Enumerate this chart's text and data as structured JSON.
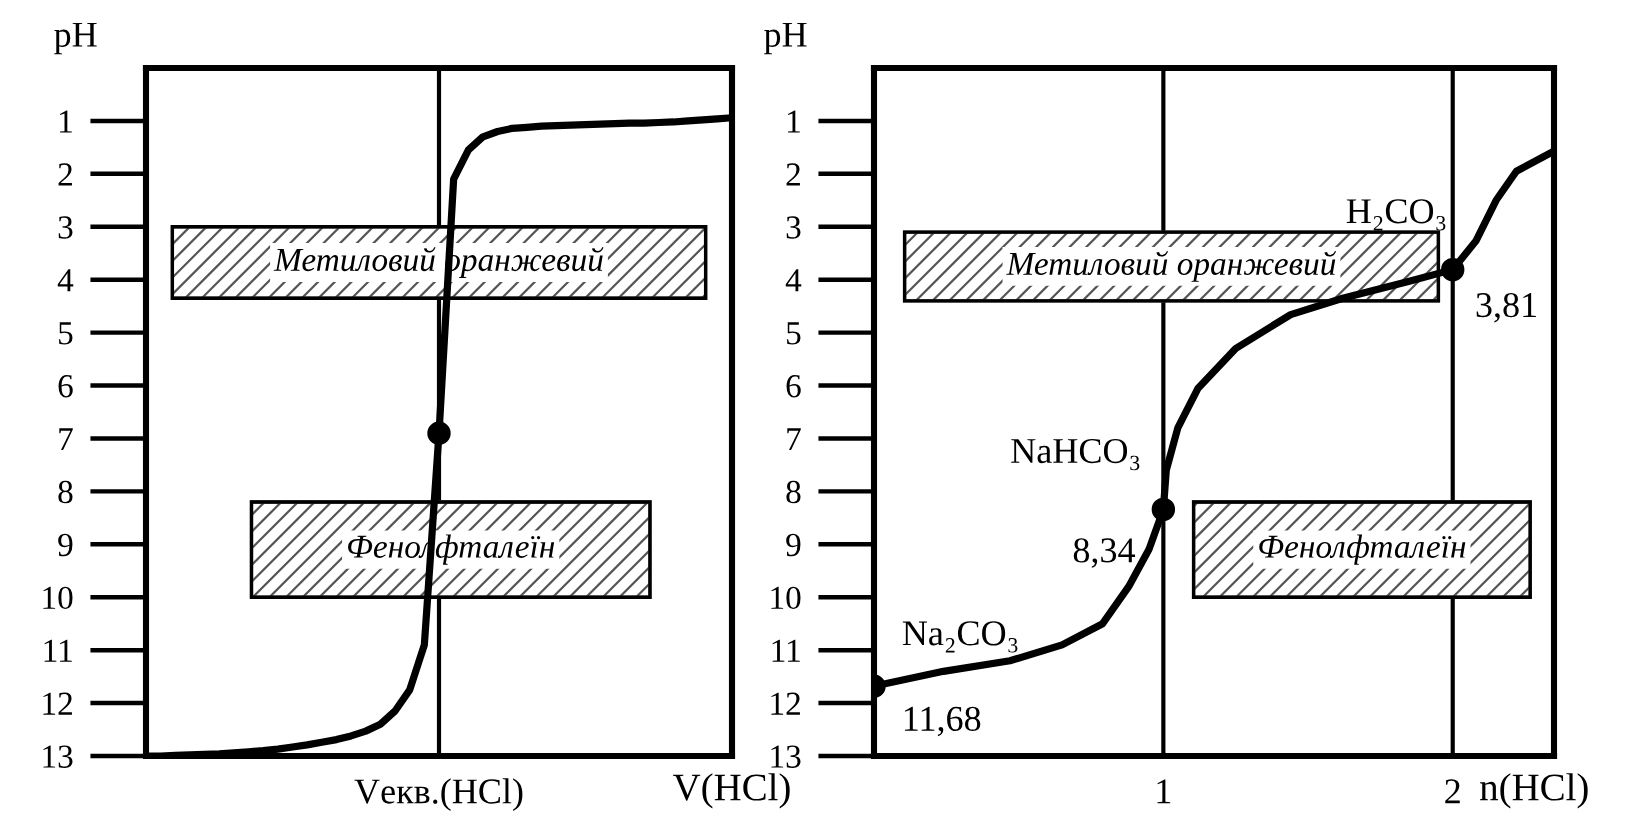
{
  "chart_data": [
    {
      "type": "line",
      "ylabel": "pH",
      "xlabel": "V(HCl)",
      "categories": [
        null,
        null,
        null,
        null,
        null,
        null,
        null,
        null,
        null,
        null,
        null,
        null,
        null,
        null,
        null,
        null,
        null,
        null,
        null,
        null,
        "Vекв.(HCl)",
        null,
        null,
        null,
        null,
        null,
        null,
        null,
        null,
        null,
        null,
        null,
        null,
        null,
        null,
        null,
        null,
        null,
        null,
        null,
        null
      ],
      "ylim": [
        13,
        0
      ],
      "yticks": [
        1,
        2,
        3,
        4,
        5,
        6,
        7,
        8,
        9,
        10,
        11,
        12,
        13
      ],
      "grid": false,
      "legend": false,
      "ref_lines": [
        {
          "axis": "x",
          "value": "Vекв.(HCl)",
          "color": "#000000"
        }
      ],
      "series": [
        {
          "type": "line",
          "color": "#000000",
          "marker": "none",
          "values": [
            13.0,
            13.0,
            12.99,
            12.98,
            12.97,
            12.96,
            12.94,
            12.92,
            12.9,
            12.87,
            12.83,
            12.79,
            12.74,
            12.69,
            12.62,
            12.53,
            12.4,
            12.15,
            11.75,
            10.9,
            6.9,
            2.1,
            1.55,
            1.3,
            1.2,
            1.14,
            1.12,
            1.1,
            1.09,
            1.08,
            1.07,
            1.06,
            1.05,
            1.04,
            1.04,
            1.03,
            1.02,
            1.0,
            0.98,
            0.96,
            0.94
          ]
        },
        {
          "type": "scatter",
          "color": "#000000",
          "marker": "circle",
          "values": [
            null,
            null,
            null,
            null,
            null,
            null,
            null,
            null,
            null,
            null,
            null,
            null,
            null,
            null,
            null,
            null,
            null,
            null,
            null,
            null,
            6.9,
            null,
            null,
            null,
            null,
            null,
            null,
            null,
            null,
            null,
            null,
            null,
            null,
            null,
            null,
            null,
            null,
            null,
            null,
            null,
            null
          ]
        }
      ],
      "bands": [
        {
          "axis": "y",
          "from": 3.0,
          "to": 4.35,
          "label": "Метиловий оранжевий",
          "color": "#555555"
        },
        {
          "axis": "y",
          "from": 8.2,
          "to": 10.0,
          "label": "Фенолфталеїн",
          "color": "#555555"
        }
      ]
    },
    {
      "type": "line",
      "ylabel": "pH",
      "xlabel": "n(HCl)",
      "xlim": [
        0,
        2.35
      ],
      "xticks": [
        1,
        2
      ],
      "ylim": [
        13,
        0
      ],
      "yticks": [
        1,
        2,
        3,
        4,
        5,
        6,
        7,
        8,
        9,
        10,
        11,
        12,
        13
      ],
      "grid": false,
      "legend": false,
      "series": [
        {
          "type": "line",
          "color": "#000000",
          "marker": "none",
          "x": [
            0,
            0.24,
            0.47,
            0.65,
            0.79,
            0.88,
            0.95,
            1.0,
            1.01,
            1.05,
            1.12,
            1.25,
            1.44,
            1.62,
            1.85,
            2.0,
            2.08,
            2.15,
            2.22,
            2.34
          ],
          "values": [
            11.68,
            11.4,
            11.2,
            10.9,
            10.5,
            9.8,
            9.1,
            8.34,
            7.6,
            6.8,
            6.05,
            5.3,
            4.66,
            4.35,
            4.03,
            3.81,
            3.27,
            2.5,
            1.95,
            1.6
          ]
        },
        {
          "type": "scatter",
          "color": "#000000",
          "marker": "circle",
          "x": [
            0,
            1,
            2
          ],
          "values": [
            11.68,
            8.34,
            3.81
          ]
        }
      ],
      "ref_lines": [
        {
          "axis": "x",
          "value": 1,
          "color": "#000000"
        },
        {
          "axis": "x",
          "value": 2,
          "color": "#000000"
        }
      ],
      "bands": [
        {
          "axis": "y",
          "from": 3.1,
          "to": 4.4,
          "label": "Метиловий оранжевий",
          "color": "#555555"
        },
        {
          "axis": "y",
          "from": 8.2,
          "to": 10.0,
          "label": "Фенолфталеїн",
          "color": "#555555"
        }
      ],
      "annotations": [
        {
          "text": "11,68",
          "x": 0,
          "y": 11.68
        },
        {
          "text": "Na₂CO₃",
          "x": 0,
          "y": 11.68
        },
        {
          "text": "8,34",
          "x": 1,
          "y": 8.34
        },
        {
          "text": "NaHCO₃",
          "x": 1,
          "y": 8.34
        },
        {
          "text": "3,81",
          "x": 2,
          "y": 3.81
        },
        {
          "text": "H₂CO₃",
          "x": 2,
          "y": 3.81
        }
      ]
    }
  ]
}
